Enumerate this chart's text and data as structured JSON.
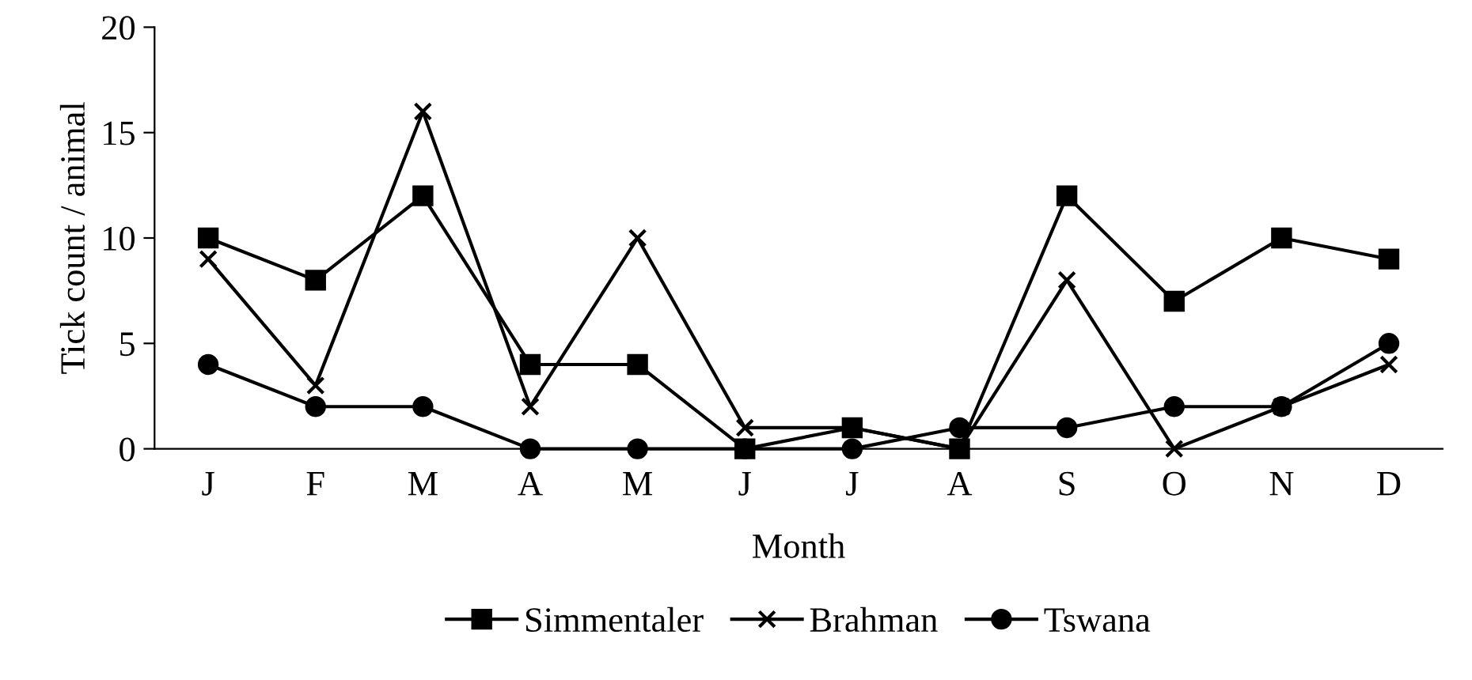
{
  "chart_data": {
    "type": "line",
    "xlabel": "Month",
    "ylabel": "Tick count / animal",
    "categories": [
      "J",
      "F",
      "M",
      "A",
      "M",
      "J",
      "J",
      "A",
      "S",
      "O",
      "N",
      "D"
    ],
    "ylim": [
      0,
      20
    ],
    "yticks": [
      0,
      5,
      10,
      15,
      20
    ],
    "grid": false,
    "legend": "bottom",
    "line_style": "solid",
    "series": [
      {
        "name": "Simmentaler",
        "color": "#000000",
        "marker": "square",
        "values": [
          10,
          8,
          12,
          4,
          4,
          0,
          1,
          0,
          12,
          7,
          10,
          9
        ]
      },
      {
        "name": "Brahman",
        "color": "#000000",
        "marker": "cross",
        "values": [
          9,
          3,
          16,
          2,
          10,
          1,
          1,
          0,
          8,
          0,
          2,
          4
        ]
      },
      {
        "name": "Tswana",
        "color": "#000000",
        "marker": "circle",
        "values": [
          4,
          2,
          2,
          0,
          0,
          0,
          0,
          1,
          1,
          2,
          2,
          5
        ]
      }
    ]
  }
}
